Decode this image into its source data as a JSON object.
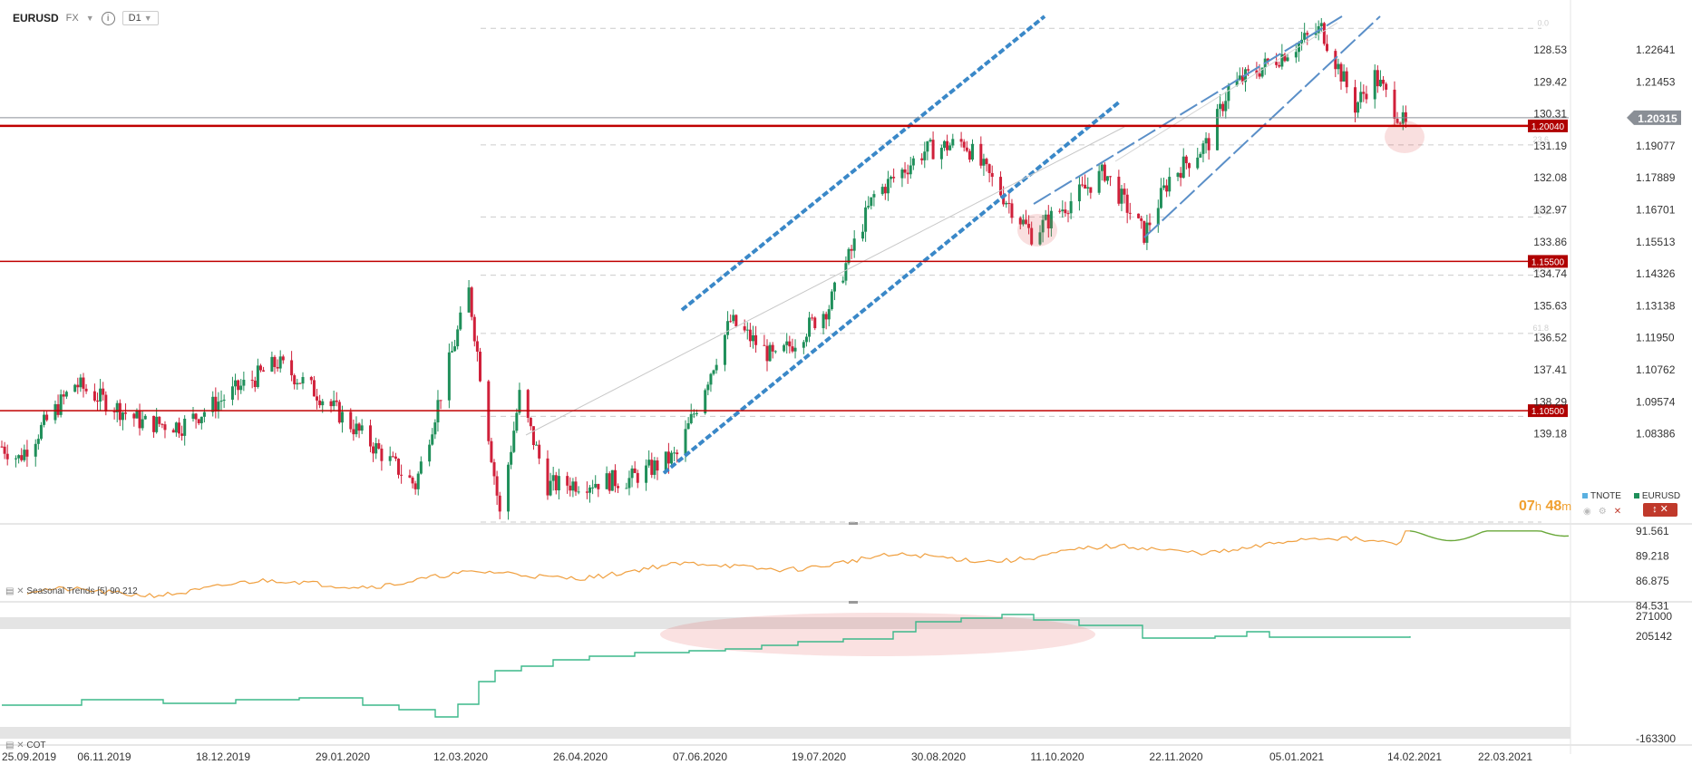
{
  "header": {
    "symbol": "EURUSD",
    "market": "FX",
    "info": "i",
    "timeframe": "D1"
  },
  "colors": {
    "up_candle": "#1f8f5a",
    "down_candle": "#d0203a",
    "level_line": "#c00000",
    "channel_dashed": "#3a88c8",
    "channel_thin": "#5a8fc8",
    "seasonal_past": "#f0a040",
    "seasonal_future": "#6aa83a",
    "cot_line": "#3cb88a",
    "price_tag": "#8a8f96"
  },
  "countdown": {
    "hours": "07",
    "h": "h",
    "minutes": "48",
    "m": "m"
  },
  "legend": {
    "tnote": "TNOTE",
    "eurusd": "EURUSD"
  },
  "close_controls": "↕ ✕",
  "panels": {
    "seasonal_label": "Seasonal  Trends [5] 90.212",
    "cot_label": "COT"
  },
  "chart_data": [
    {
      "type": "candlestick",
      "title": "EURUSD D1",
      "y_left_ticks": [
        "128.53",
        "129.42",
        "130.31",
        "131.19",
        "132.08",
        "132.97",
        "133.86",
        "134.74",
        "135.63",
        "136.52",
        "137.41",
        "138.29",
        "139.18"
      ],
      "y_right_ticks": [
        "1.22641",
        "1.21453",
        "1.20315",
        "1.19077",
        "1.17889",
        "1.16701",
        "1.15513",
        "1.14326",
        "1.13138",
        "1.11950",
        "1.10762",
        "1.09574",
        "1.08386"
      ],
      "ylim": [
        1.0695,
        1.2365
      ],
      "current_price": "1.20315",
      "horizontal_levels": [
        {
          "label": "1.20040",
          "value": 1.2004
        },
        {
          "label": "1.15500",
          "value": 1.155
        },
        {
          "label": "1.10500",
          "value": 1.105
        }
      ],
      "fib_labels": [
        "0.0",
        "23.6",
        "38.2",
        "50.0",
        "61.8",
        "78.6"
      ],
      "approx_path": [
        {
          "date": "2019-09-25",
          "close": 1.093
        },
        {
          "date": "2019-10-01",
          "close": 1.089
        },
        {
          "date": "2019-10-21",
          "close": 1.114
        },
        {
          "date": "2019-11-14",
          "close": 1.101
        },
        {
          "date": "2019-11-28",
          "close": 1.1
        },
        {
          "date": "2020-01-01",
          "close": 1.121
        },
        {
          "date": "2020-01-15",
          "close": 1.111
        },
        {
          "date": "2020-02-19",
          "close": 1.08
        },
        {
          "date": "2020-03-09",
          "close": 1.145
        },
        {
          "date": "2020-03-20",
          "close": 1.07
        },
        {
          "date": "2020-03-27",
          "close": 1.11
        },
        {
          "date": "2020-04-06",
          "close": 1.08
        },
        {
          "date": "2020-05-05",
          "close": 1.082
        },
        {
          "date": "2020-05-22",
          "close": 1.09
        },
        {
          "date": "2020-06-10",
          "close": 1.135
        },
        {
          "date": "2020-06-26",
          "close": 1.122
        },
        {
          "date": "2020-07-15",
          "close": 1.14
        },
        {
          "date": "2020-07-31",
          "close": 1.177
        },
        {
          "date": "2020-08-18",
          "close": 1.192
        },
        {
          "date": "2020-09-01",
          "close": 1.195
        },
        {
          "date": "2020-09-25",
          "close": 1.164
        },
        {
          "date": "2020-10-21",
          "close": 1.185
        },
        {
          "date": "2020-11-04",
          "close": 1.164
        },
        {
          "date": "2020-11-13",
          "close": 1.183
        },
        {
          "date": "2020-11-27",
          "close": 1.195
        },
        {
          "date": "2020-12-04",
          "close": 1.213
        },
        {
          "date": "2020-12-21",
          "close": 1.223
        },
        {
          "date": "2021-01-06",
          "close": 1.233
        },
        {
          "date": "2021-01-18",
          "close": 1.207
        },
        {
          "date": "2021-01-25",
          "close": 1.217
        },
        {
          "date": "2021-02-05",
          "close": 1.2
        }
      ],
      "x_tick_labels": [
        "25.09.2019",
        "06.11.2019",
        "18.12.2019",
        "29.01.2020",
        "12.03.2020",
        "26.04.2020",
        "07.06.2020",
        "19.07.2020",
        "30.08.2020",
        "11.10.2020",
        "22.11.2020",
        "05.01.2021",
        "14.02.2021",
        "22.03.2021"
      ]
    },
    {
      "type": "line",
      "y_ticks": [
        "91.561",
        "89.218",
        "86.875",
        "84.531"
      ],
      "ylim": [
        84.531,
        91.561
      ]
    },
    {
      "type": "line",
      "y_ticks": [
        "271000",
        "205142",
        "-163300"
      ],
      "ylim": [
        -163300,
        271000
      ]
    }
  ]
}
